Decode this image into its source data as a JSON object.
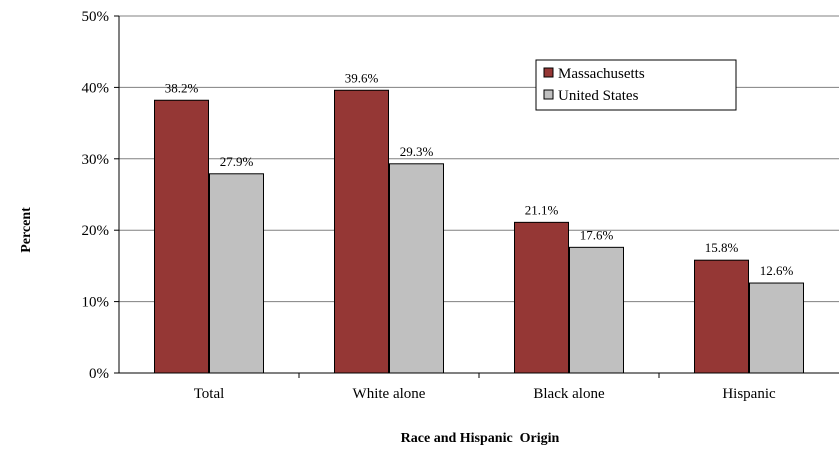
{
  "chart_data": {
    "type": "bar",
    "title": "",
    "xlabel": "Race and Hispanic  Origin",
    "ylabel": "Percent",
    "ylim": [
      0,
      50
    ],
    "ytick_values": [
      0,
      10,
      20,
      30,
      40,
      50
    ],
    "ytick_labels": [
      "0%",
      "10%",
      "20%",
      "30%",
      "40%",
      "50%"
    ],
    "categories": [
      "Total",
      "White alone",
      "Black alone",
      "Hispanic"
    ],
    "series": [
      {
        "name": "Massachusetts",
        "color": "#953735",
        "values": [
          38.2,
          39.6,
          21.1,
          15.8
        ],
        "labels": [
          "38.2%",
          "39.6%",
          "21.1%",
          "15.8%"
        ]
      },
      {
        "name": "United States",
        "color": "#c0c0c0",
        "values": [
          27.9,
          29.3,
          17.6,
          12.6
        ],
        "labels": [
          "27.9%",
          "29.3%",
          "17.6%",
          "12.6%"
        ]
      }
    ],
    "grid": true,
    "legend_position": "top-right"
  }
}
